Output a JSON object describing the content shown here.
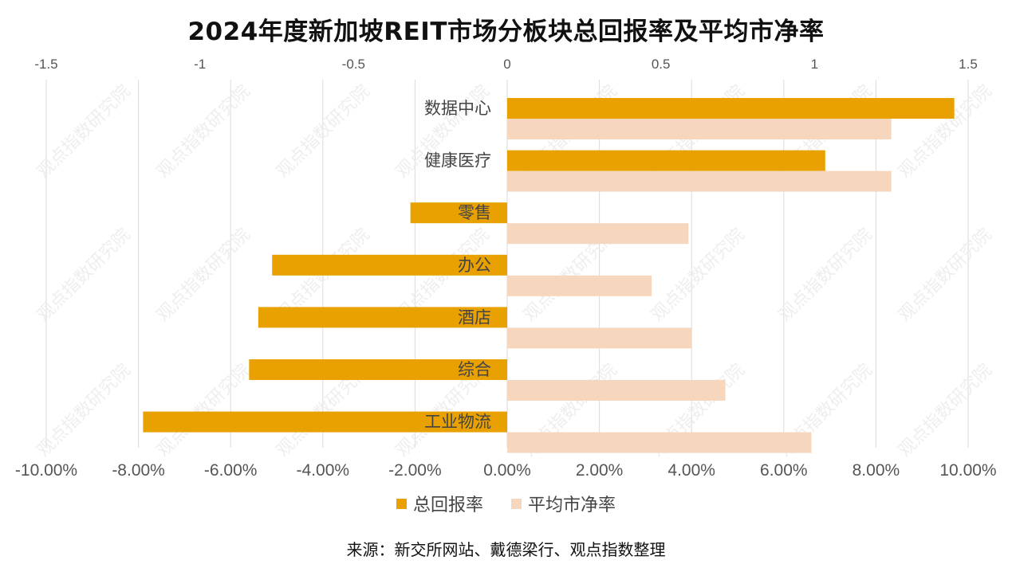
{
  "title": "2024年度新加坡REIT市场分板块总回报率及平均市净率",
  "source": "来源：新交所网站、戴德梁行、观点指数整理",
  "watermark": "观点指数研究院",
  "colors": {
    "total_return": "#E8A100",
    "pb_ratio": "#F6D7BE",
    "grid": "#DADADA"
  },
  "chart_data": {
    "type": "bar",
    "orientation": "horizontal",
    "categories": [
      "数据中心",
      "健康医疗",
      "零售",
      "办公",
      "酒店",
      "综合",
      "工业物流"
    ],
    "series": [
      {
        "name": "总回报率",
        "axis": "bottom",
        "unit": "percent",
        "values": [
          9.7,
          6.9,
          -2.1,
          -5.1,
          -5.4,
          -5.6,
          -7.9
        ]
      },
      {
        "name": "平均市净率",
        "axis": "top",
        "values": [
          1.25,
          1.25,
          0.59,
          0.47,
          0.6,
          0.71,
          0.99
        ]
      }
    ],
    "bottom_axis": {
      "range": [
        -10,
        10
      ],
      "ticks": [
        "-10.00%",
        "-8.00%",
        "-6.00%",
        "-4.00%",
        "-2.00%",
        "0.00%",
        "2.00%",
        "4.00%",
        "6.00%",
        "8.00%",
        "10.00%"
      ]
    },
    "top_axis": {
      "range": [
        -1.5,
        1.5
      ],
      "ticks": [
        "-1.5",
        "-1",
        "-0.5",
        "0",
        "0.5",
        "1",
        "1.5"
      ]
    },
    "grid": true,
    "legend_position": "bottom"
  }
}
